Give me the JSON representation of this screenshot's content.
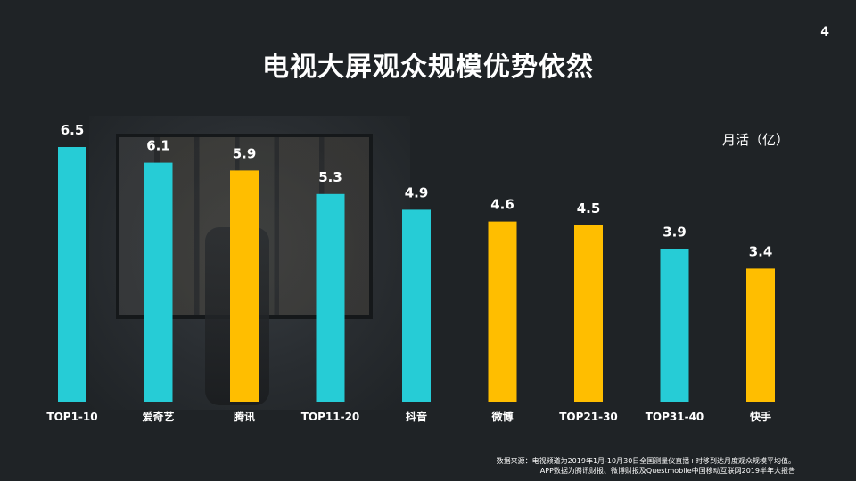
{
  "page_number": "4",
  "title": "电视大屏观众规模优势依然",
  "unit_label": "月活（亿）",
  "source_lines": [
    "数据来源：电视频道为2019年1月-10月30日全国测量仪直播+时移到达月度观众规模平均值。",
    "APP数据为腾讯财报、微博财报及Questmobile中国移动互联网2019半年大报告"
  ],
  "colors": {
    "teal": "#26ccd6",
    "gold": "#ffbe00",
    "background": "#1f2326",
    "text": "#ffffff"
  },
  "chart_data": {
    "type": "bar",
    "categories": [
      "TOP1-10",
      "爱奇艺",
      "腾讯",
      "TOP11-20",
      "抖音",
      "微博",
      "TOP21-30",
      "TOP31-40",
      "快手"
    ],
    "values": [
      6.5,
      6.1,
      5.9,
      5.3,
      4.9,
      4.6,
      4.5,
      3.9,
      3.4
    ],
    "value_labels": [
      "6.5",
      "6.1",
      "5.9",
      "5.3",
      "4.9",
      "4.6",
      "4.5",
      "3.9",
      "3.4"
    ],
    "bar_colors": [
      "#26ccd6",
      "#26ccd6",
      "#ffbe00",
      "#26ccd6",
      "#26ccd6",
      "#ffbe00",
      "#ffbe00",
      "#26ccd6",
      "#ffbe00"
    ],
    "ylabel": "月活（亿）",
    "ylim": [
      0,
      6.5
    ],
    "grid": false,
    "legend": "none"
  }
}
